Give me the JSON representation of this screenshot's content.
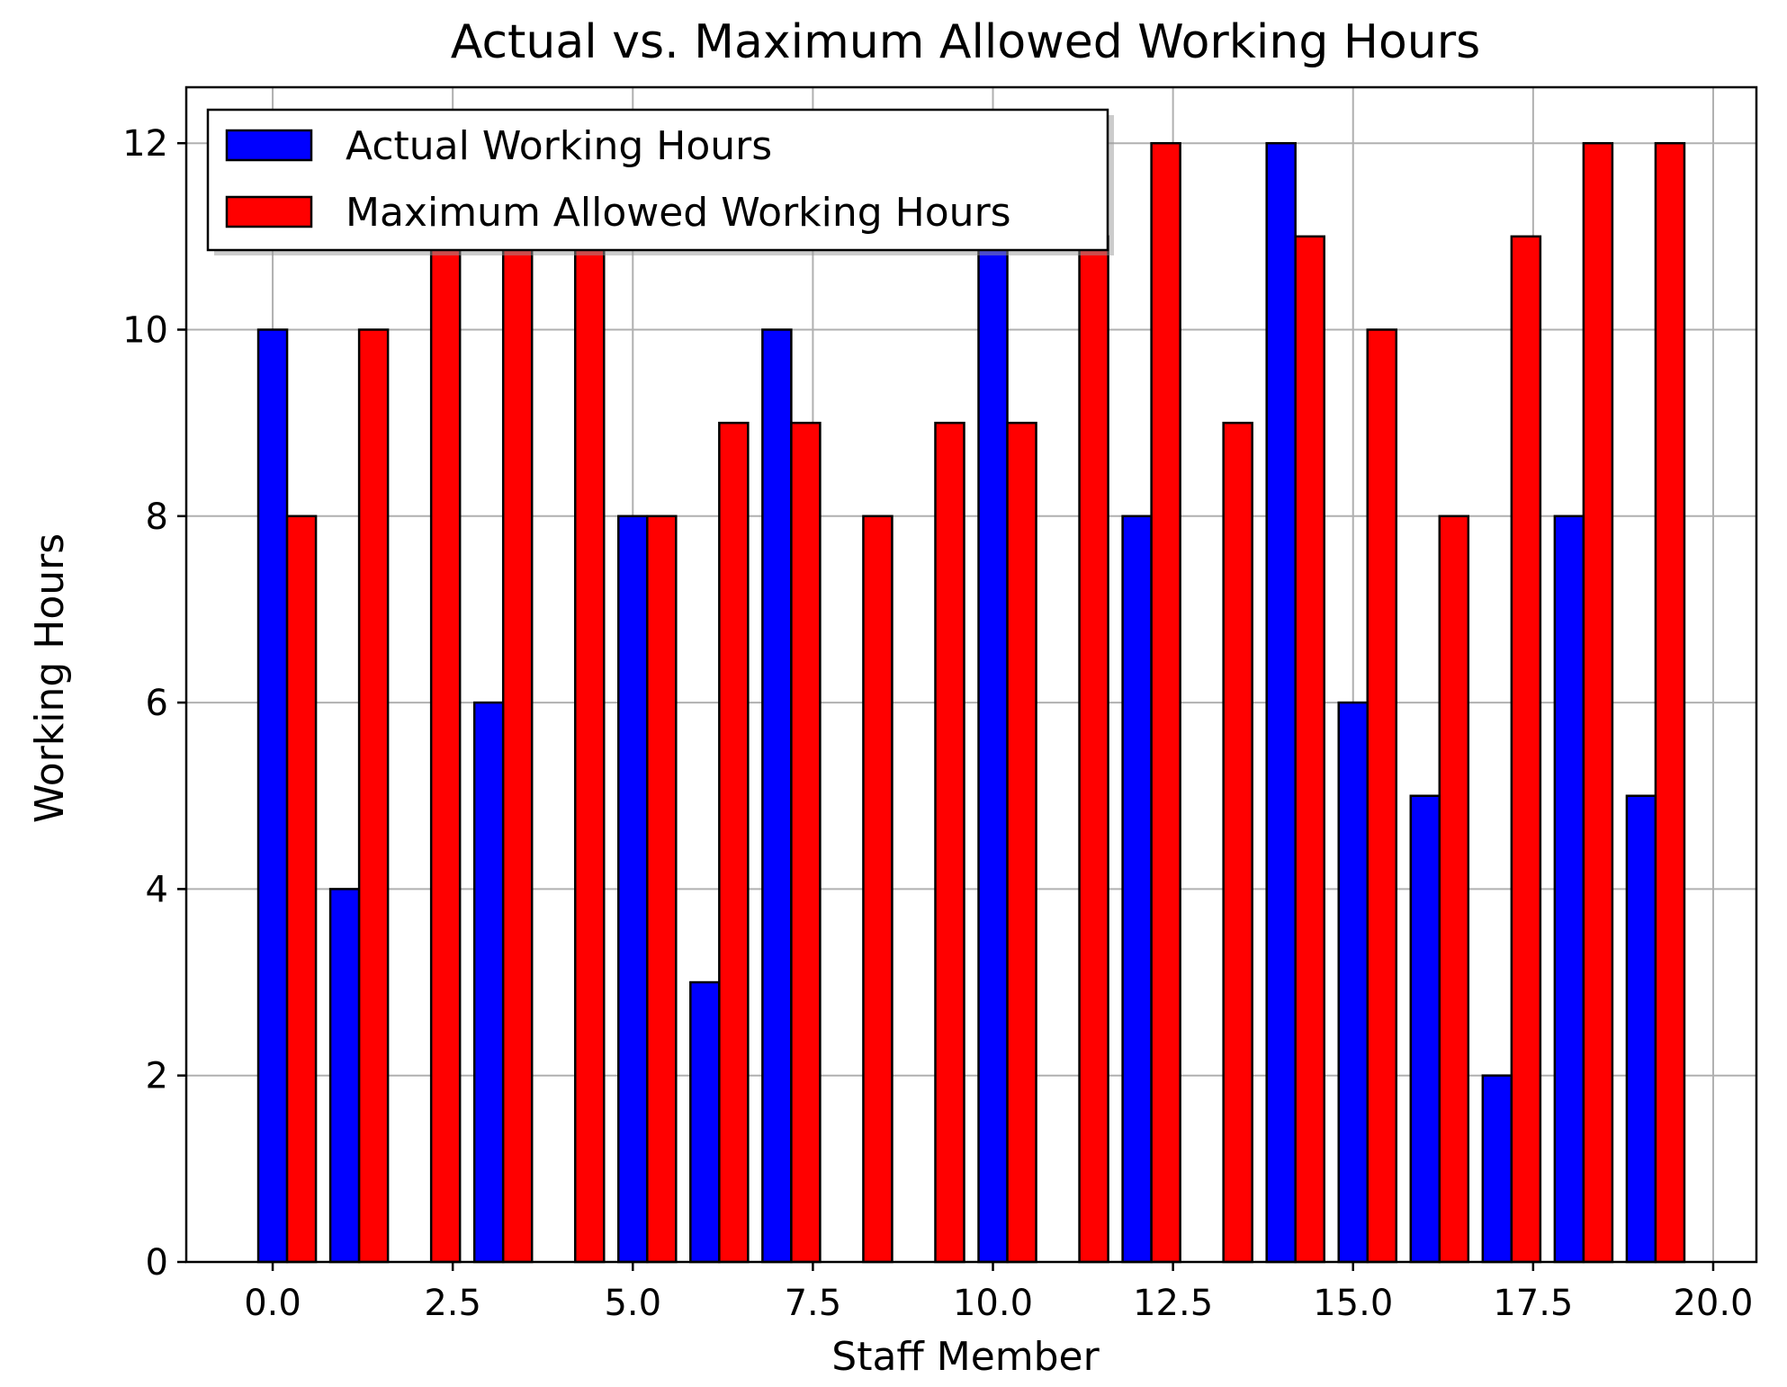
{
  "chart_data": {
    "type": "bar",
    "title": "Actual vs. Maximum Allowed Working Hours",
    "xlabel": "Staff Member",
    "ylabel": "Working Hours",
    "xlim": [
      -1.2,
      20.6
    ],
    "ylim": [
      0,
      12.6
    ],
    "x_ticks": [
      0.0,
      2.5,
      5.0,
      7.5,
      10.0,
      12.5,
      15.0,
      17.5,
      20.0
    ],
    "x_tick_labels": [
      "0.0",
      "2.5",
      "5.0",
      "7.5",
      "10.0",
      "12.5",
      "15.0",
      "17.5",
      "20.0"
    ],
    "y_ticks": [
      0,
      2,
      4,
      6,
      8,
      10,
      12
    ],
    "y_tick_labels": [
      "0",
      "2",
      "4",
      "6",
      "8",
      "10",
      "12"
    ],
    "grid": true,
    "legend_position": "top-left",
    "bar_width": 0.4,
    "x": [
      0,
      1,
      2,
      3,
      4,
      5,
      6,
      7,
      8,
      9,
      10,
      11,
      12,
      13,
      14,
      15,
      16,
      17,
      18,
      19
    ],
    "series": [
      {
        "name": "Actual Working Hours",
        "color": "#0000ff",
        "offset": 0,
        "values": [
          10,
          4,
          0,
          6,
          0,
          8,
          3,
          10,
          0,
          0,
          11,
          0,
          8,
          0,
          12,
          6,
          5,
          2,
          8,
          5
        ]
      },
      {
        "name": "Maximum Allowed Working Hours",
        "color": "#ff0000",
        "offset": 0.4,
        "values": [
          8,
          10,
          11,
          11,
          11,
          8,
          9,
          9,
          8,
          9,
          9,
          11,
          12,
          9,
          11,
          10,
          8,
          11,
          12,
          12
        ]
      }
    ]
  }
}
